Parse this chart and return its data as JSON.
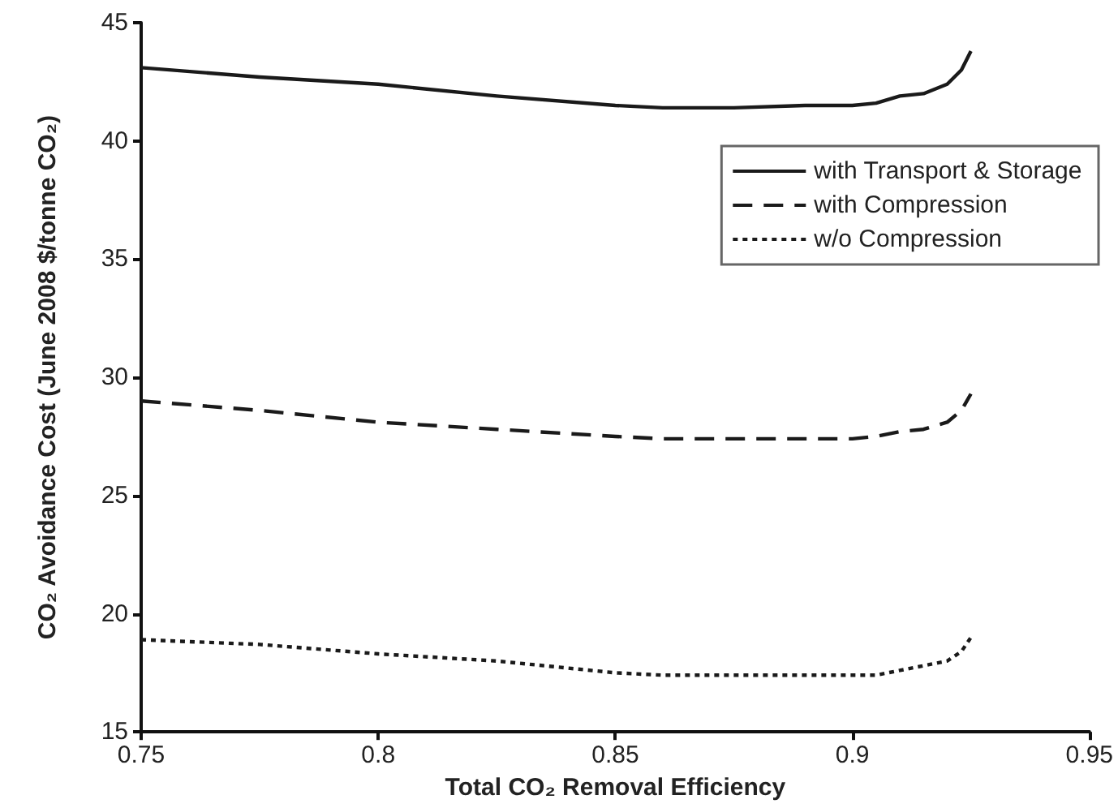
{
  "chart_data": {
    "type": "line",
    "xlabel": "Total CO₂ Removal Efficiency",
    "ylabel": "CO₂ Avoidance Cost (June 2008 $/tonne CO₂)",
    "x": [
      0.75,
      0.775,
      0.8,
      0.825,
      0.85,
      0.86,
      0.875,
      0.89,
      0.9,
      0.905,
      0.91,
      0.915,
      0.92,
      0.923,
      0.925
    ],
    "series": [
      {
        "name": "with Transport & Storage",
        "color": "#1a1a1a",
        "line_style": "solid",
        "values": [
          43.1,
          42.7,
          42.4,
          41.9,
          41.5,
          41.4,
          41.4,
          41.5,
          41.5,
          41.6,
          41.9,
          42.0,
          42.4,
          43.0,
          43.8
        ]
      },
      {
        "name": "with Compression",
        "color": "#1a1a1a",
        "line_style": "dashed",
        "values": [
          29.0,
          28.6,
          28.1,
          27.8,
          27.5,
          27.4,
          27.4,
          27.4,
          27.4,
          27.5,
          27.7,
          27.8,
          28.1,
          28.6,
          29.3
        ]
      },
      {
        "name": "w/o Compression",
        "color": "#1a1a1a",
        "line_style": "dotted",
        "values": [
          18.9,
          18.7,
          18.3,
          18.0,
          17.5,
          17.4,
          17.4,
          17.4,
          17.4,
          17.4,
          17.6,
          17.8,
          18.0,
          18.4,
          19.0
        ]
      }
    ],
    "xlim": [
      0.75,
      0.95
    ],
    "xticks": [
      0.75,
      0.8,
      0.85,
      0.9,
      0.95
    ],
    "ylim": [
      15,
      45
    ],
    "yticks": [
      15,
      20,
      25,
      30,
      35,
      40,
      45
    ],
    "grid": false,
    "legend": "top right",
    "marker": "none"
  }
}
